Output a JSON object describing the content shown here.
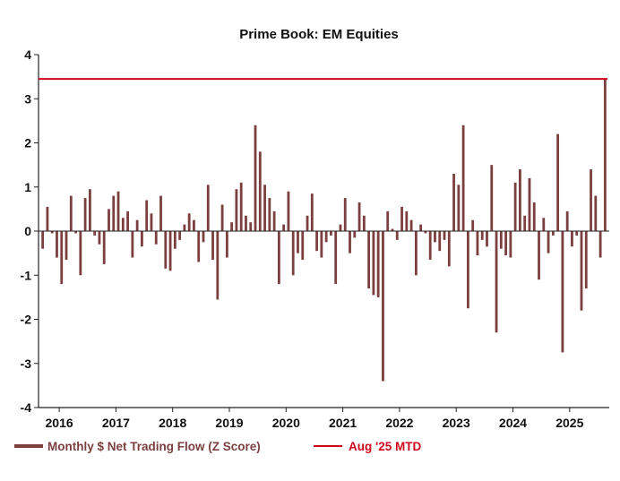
{
  "chart_data": {
    "type": "bar",
    "title": "Prime Book: EM Equities",
    "xlabel": "",
    "ylabel": "",
    "ylim": [
      -4,
      4
    ],
    "yticks": [
      4,
      3,
      2,
      1,
      0,
      -1,
      -2,
      -3,
      -4
    ],
    "xtick_labels": [
      "2016",
      "2017",
      "2018",
      "2019",
      "2020",
      "2021",
      "2022",
      "2023",
      "2024",
      "2025"
    ],
    "x_start": "2015-09",
    "x_end": "2025-08",
    "grid": false,
    "legend_position": "bottom",
    "series": [
      {
        "name": "Monthly $ Net Trading Flow (Z Score)",
        "color": "#7b3f3f",
        "values": [
          -0.4,
          0.55,
          -0.05,
          -0.6,
          -1.2,
          -0.65,
          0.8,
          -0.05,
          -1.0,
          0.75,
          0.95,
          -0.1,
          -0.3,
          -0.75,
          0.5,
          0.8,
          0.9,
          0.3,
          0.45,
          -0.6,
          0.25,
          -0.35,
          0.7,
          0.4,
          -0.3,
          0.8,
          -0.85,
          -0.9,
          -0.4,
          -0.2,
          0.15,
          0.4,
          0.25,
          -0.7,
          -0.25,
          1.05,
          -0.65,
          -1.55,
          0.6,
          -0.6,
          0.2,
          0.95,
          1.1,
          0.35,
          0.2,
          2.4,
          1.8,
          1.05,
          0.75,
          0.45,
          -1.2,
          0.15,
          0.9,
          -1.0,
          -0.5,
          -0.65,
          0.35,
          0.85,
          -0.45,
          -0.6,
          -0.25,
          -0.1,
          -1.2,
          0.15,
          0.75,
          -0.5,
          -0.15,
          0.65,
          0.35,
          -1.3,
          -1.45,
          -1.5,
          -3.4,
          0.45,
          0.05,
          -0.2,
          0.55,
          0.45,
          0.25,
          -1.0,
          0.15,
          -0.05,
          -0.65,
          -0.25,
          -0.45,
          -0.2,
          -0.8,
          1.3,
          1.05,
          2.4,
          -1.75,
          0.25,
          -0.55,
          -0.2,
          -0.35,
          1.5,
          -2.3,
          -0.4,
          -0.55,
          -0.6,
          1.1,
          1.4,
          0.35,
          1.2,
          0.65,
          -1.1,
          0.3,
          -0.5,
          -0.1,
          2.2,
          -2.75,
          0.45,
          -0.35,
          -0.1,
          -1.8,
          -1.3,
          1.4,
          0.8,
          -0.6,
          3.45
        ]
      }
    ],
    "reference_line": {
      "name": "Aug '25 MTD",
      "value": 3.45,
      "color": "#d0021b"
    }
  }
}
